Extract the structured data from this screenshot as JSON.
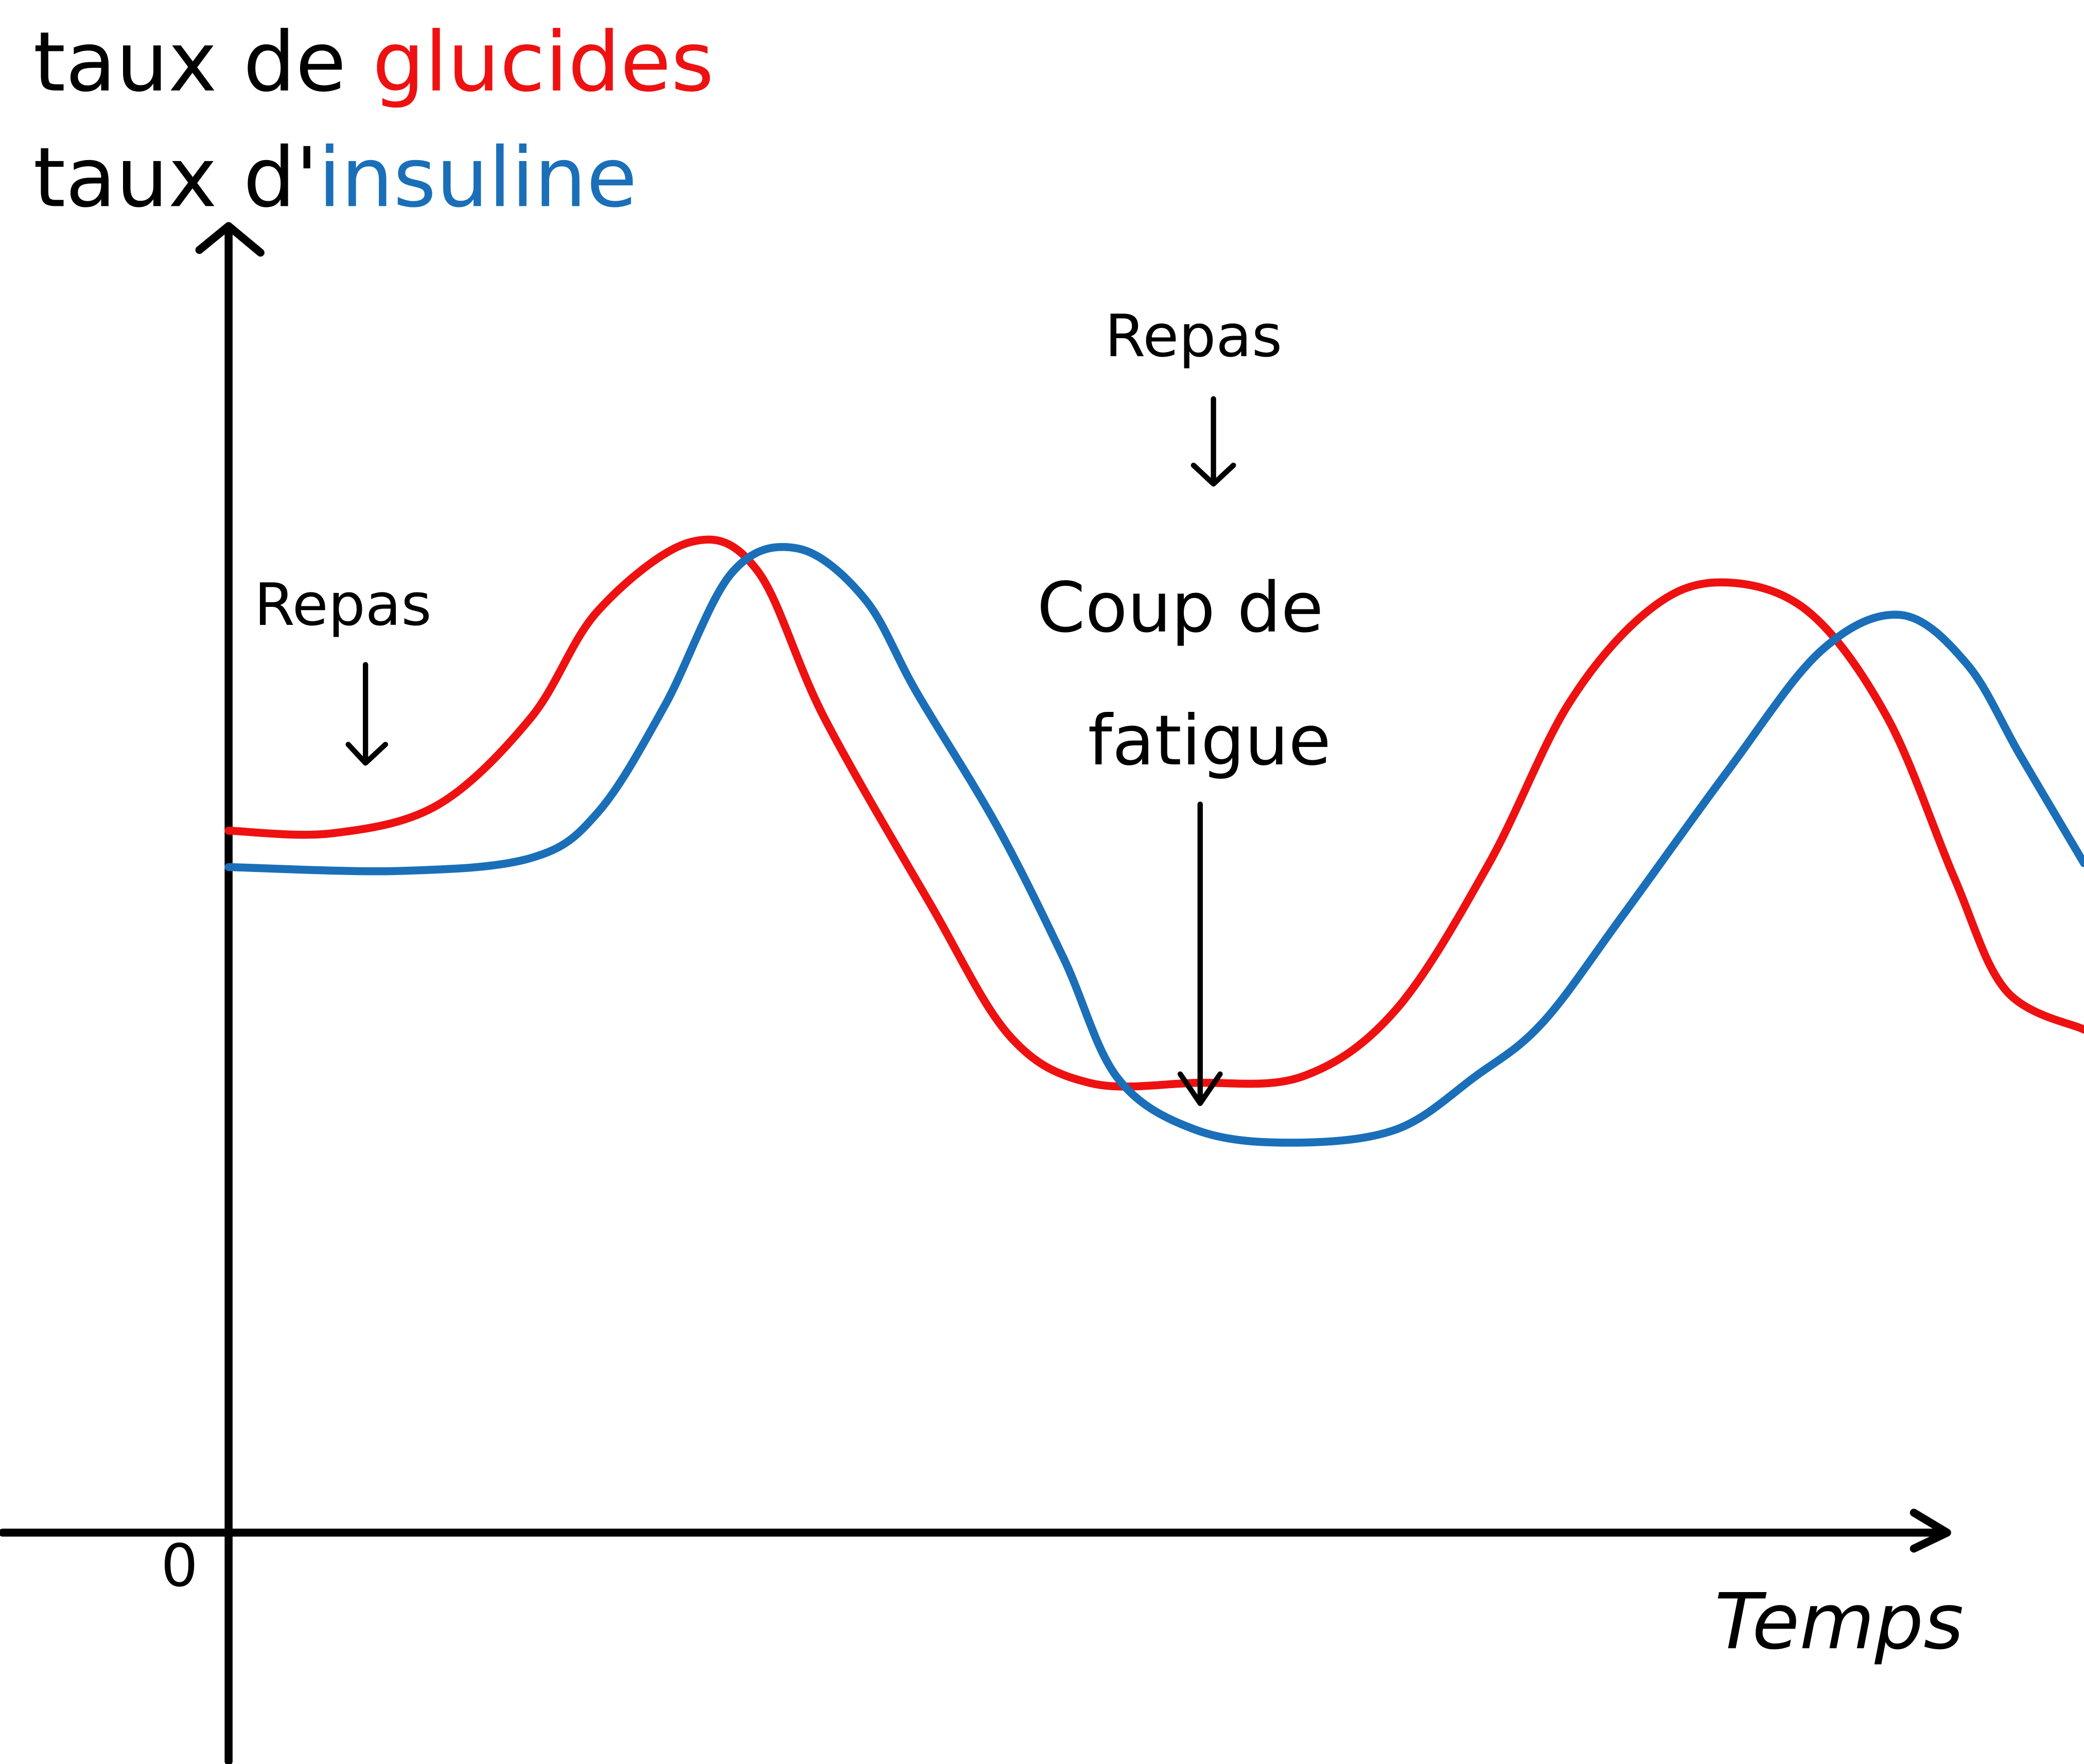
{
  "chart_data": {
    "type": "line",
    "title_lines": [
      {
        "prefix": "taux de ",
        "word": "glucides"
      },
      {
        "prefix": "taux d'",
        "word": "insuline"
      }
    ],
    "x_label": "Temps",
    "annotations": [
      {
        "text": "Repas"
      },
      {
        "text": "Repas"
      },
      {
        "lines": [
          "Coup de",
          "fatigue"
        ]
      }
    ],
    "xlim": [
      0,
      100
    ],
    "ylim": [
      0,
      100
    ],
    "yticks": [
      0
    ],
    "series": [
      {
        "name": "glucides",
        "color": "#ee1111",
        "x": [
          0,
          5.6,
          11.3,
          16.3,
          19.9,
          24.9,
          28.5,
          32.1,
          37.8,
          42.1,
          46.4,
          52.1,
          57.9,
          62.9,
          67.9,
          72.2,
          76.5,
          80.4,
          85.1,
          89.4,
          93.0,
          95.8,
          100
        ],
        "values": [
          54.0,
          53.8,
          56.0,
          62.7,
          70.9,
          76.2,
          74.0,
          62.7,
          48.4,
          38.2,
          34.6,
          34.6,
          35.1,
          40.2,
          51.4,
          63.7,
          70.9,
          73.1,
          70.9,
          62.7,
          50.4,
          41.7,
          38.7
        ]
      },
      {
        "name": "insuline",
        "color": "#1a6fb8",
        "x": [
          0,
          9.2,
          16.3,
          19.9,
          23.5,
          27.1,
          30.7,
          34.3,
          37.1,
          41.4,
          45.0,
          47.9,
          52.1,
          57.2,
          62.9,
          67.2,
          70.8,
          75.1,
          80.8,
          85.8,
          90.1,
          93.7,
          96.6,
          100
        ],
        "values": [
          51.2,
          50.9,
          51.9,
          55.4,
          63.6,
          73.8,
          75.7,
          71.8,
          64.6,
          54.4,
          44.2,
          35.0,
          31.0,
          30.0,
          31.0,
          35.1,
          39.2,
          47.4,
          58.6,
          67.8,
          70.6,
          66.8,
          59.7,
          51.5
        ]
      }
    ]
  }
}
